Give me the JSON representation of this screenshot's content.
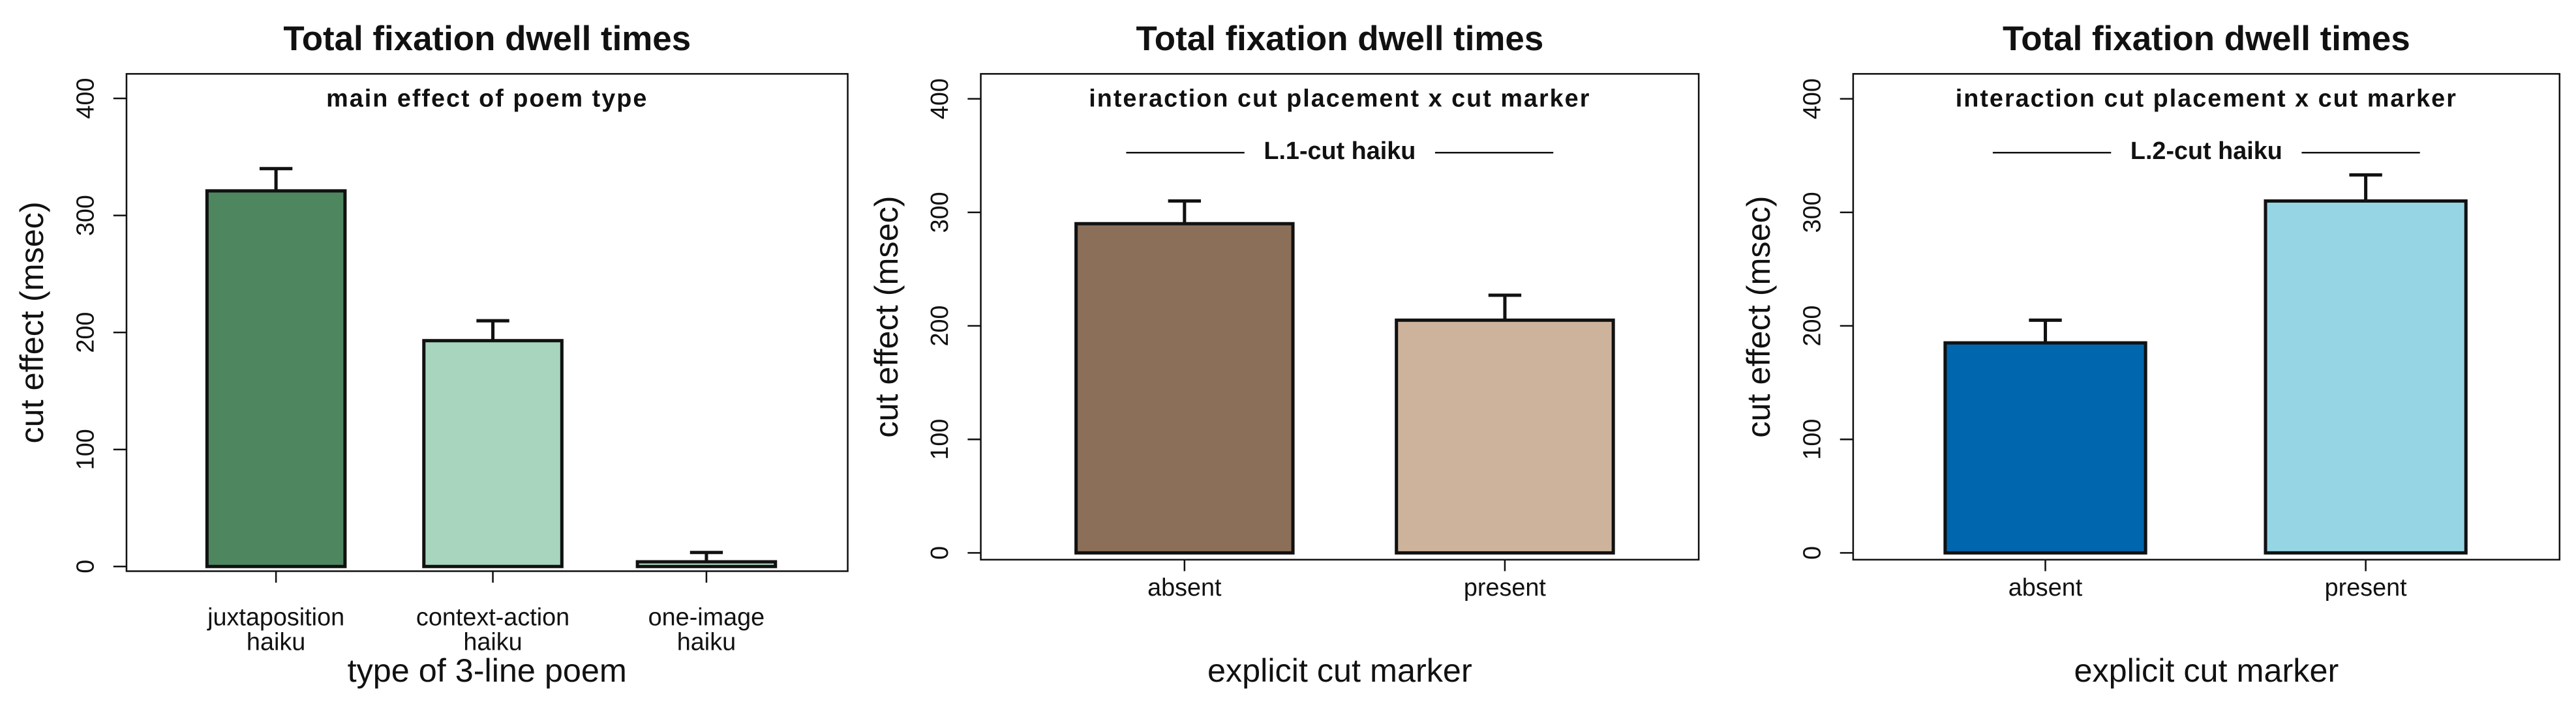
{
  "chart_data": [
    {
      "type": "bar",
      "title": "Total fixation dwell times",
      "subtitle": "main effect of poem type",
      "categories": [
        "juxtaposition\nhaiku",
        "context-action\nhaiku",
        "one-image\nhaiku"
      ],
      "values": [
        321,
        193,
        4
      ],
      "errors": [
        19,
        17,
        8
      ],
      "colors": [
        "#4e875f",
        "#a8d5bd",
        "#b4dcc4"
      ],
      "ylim": [
        -4,
        421
      ],
      "yticks": [
        0,
        100,
        200,
        300,
        400
      ],
      "xlabel": "type of 3-line poem",
      "ylabel": "cut effect (msec)"
    },
    {
      "type": "bar",
      "title": "Total fixation dwell times",
      "subtitle": "interaction cut placement x cut marker",
      "annotation": "L.1-cut haiku",
      "categories": [
        "absent",
        "present"
      ],
      "values": [
        290,
        205
      ],
      "errors": [
        20,
        22
      ],
      "colors": [
        "#8b6f58",
        "#ceb39c"
      ],
      "ylim": [
        -6,
        422
      ],
      "yticks": [
        0,
        100,
        200,
        300,
        400
      ],
      "xlabel": "explicit cut marker",
      "ylabel": "cut effect (msec)"
    },
    {
      "type": "bar",
      "title": "Total fixation dwell times",
      "subtitle": "interaction cut placement x cut marker",
      "annotation": "L.2-cut haiku",
      "categories": [
        "absent",
        "present"
      ],
      "values": [
        185,
        310
      ],
      "errors": [
        20,
        23
      ],
      "colors": [
        "#0066ad",
        "#96d6e4"
      ],
      "ylim": [
        -6,
        422
      ],
      "yticks": [
        0,
        100,
        200,
        300,
        400
      ],
      "xlabel": "explicit cut marker",
      "ylabel": "cut effect (msec)"
    }
  ]
}
